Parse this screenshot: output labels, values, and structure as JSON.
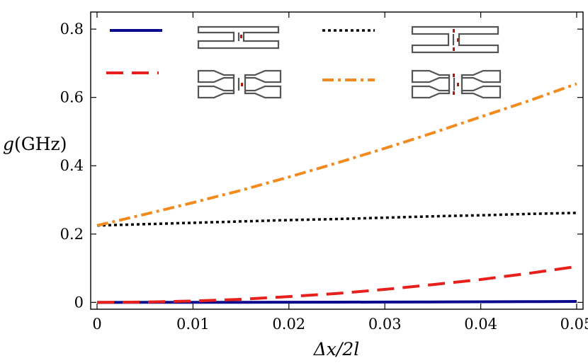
{
  "chart_data": {
    "type": "line",
    "title": "",
    "xlabel": "Δx/2l",
    "ylabel_symbol": "g",
    "ylabel_unit": "(GHz)",
    "xlim": [
      0,
      0.05
    ],
    "ylim": [
      -0.02,
      0.85
    ],
    "xticks": [
      0,
      0.01,
      0.02,
      0.03,
      0.04,
      0.05
    ],
    "xtick_labels": [
      "0",
      "0.01",
      "0.02",
      "0.03",
      "0.04",
      "0.05"
    ],
    "yticks": [
      0,
      0.2,
      0.4,
      0.6,
      0.8
    ],
    "ytick_labels": [
      "0",
      "0.2",
      "0.4",
      "0.6",
      "0.8"
    ],
    "grid": false,
    "legend_position": "top",
    "x": [
      0,
      0.005,
      0.01,
      0.015,
      0.02,
      0.025,
      0.03,
      0.035,
      0.04,
      0.045,
      0.05
    ],
    "series": [
      {
        "name": "single-junction uniform beam",
        "color": "#0a0a8c",
        "dash": "solid",
        "values": [
          0,
          0.0001,
          0.0002,
          0.0003,
          0.0005,
          0.0007,
          0.001,
          0.0013,
          0.0017,
          0.0022,
          0.0027
        ]
      },
      {
        "name": "double-junction uniform beam",
        "color": "#000000",
        "dash": "dotted",
        "values": [
          0.225,
          0.229,
          0.233,
          0.237,
          0.241,
          0.244,
          0.248,
          0.252,
          0.255,
          0.259,
          0.262
        ]
      },
      {
        "name": "single-junction tapered beam",
        "color": "#e8201c",
        "dash": "dashed",
        "values": [
          0,
          0.001,
          0.004,
          0.009,
          0.017,
          0.026,
          0.038,
          0.052,
          0.067,
          0.085,
          0.105
        ]
      },
      {
        "name": "double-junction tapered beam",
        "color": "#f28a1e",
        "dash": "dashdot",
        "values": [
          0.225,
          0.258,
          0.292,
          0.328,
          0.367,
          0.408,
          0.451,
          0.496,
          0.543,
          0.59,
          0.64
        ]
      }
    ]
  }
}
